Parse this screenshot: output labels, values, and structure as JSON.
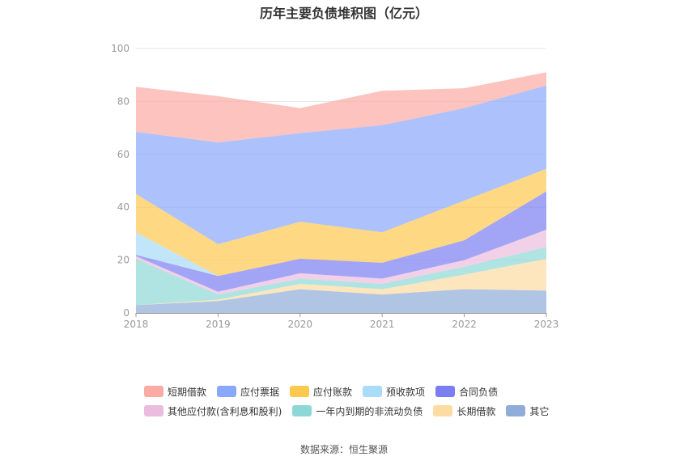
{
  "chart_data": {
    "type": "area",
    "stacked": true,
    "title": "历年主要负债堆积图（亿元）",
    "x": [
      "2018",
      "2019",
      "2020",
      "2021",
      "2022",
      "2023"
    ],
    "ylim": [
      0,
      100
    ],
    "yticks": [
      0,
      20,
      40,
      60,
      80,
      100
    ],
    "grid": true,
    "legend_position": "bottom",
    "series": [
      {
        "name": "其它",
        "color": "#8fadd8",
        "values": [
          3.0,
          4.5,
          9.0,
          7.0,
          9.0,
          8.5
        ]
      },
      {
        "name": "长期借款",
        "color": "#fcdca2",
        "values": [
          0.0,
          0.5,
          2.0,
          2.0,
          5.5,
          12.0
        ]
      },
      {
        "name": "一年内到期的非流动负债",
        "color": "#8dd8d6",
        "values": [
          17.5,
          2.0,
          2.0,
          2.0,
          3.0,
          4.5
        ]
      },
      {
        "name": "其他应付款(含利息和股利)",
        "color": "#ecbcde",
        "values": [
          1.0,
          1.0,
          2.0,
          2.0,
          2.5,
          6.5
        ]
      },
      {
        "name": "合同负债",
        "color": "#7b7ef2",
        "values": [
          0.5,
          6.0,
          5.5,
          6.0,
          7.5,
          14.5
        ]
      },
      {
        "name": "预收款项",
        "color": "#a8dcf7",
        "values": [
          8.5,
          0.0,
          0.0,
          0.0,
          0.0,
          0.0
        ]
      },
      {
        "name": "应付账款",
        "color": "#fdc84e",
        "values": [
          14.5,
          12.0,
          14.0,
          11.5,
          15.0,
          8.5
        ]
      },
      {
        "name": "应付票据",
        "color": "#8aa8fb",
        "values": [
          23.5,
          38.5,
          33.5,
          40.5,
          35.0,
          31.5
        ]
      },
      {
        "name": "短期借款",
        "color": "#fbaaa4",
        "values": [
          17.0,
          17.5,
          9.5,
          13.0,
          7.5,
          5.0
        ]
      }
    ]
  },
  "legend_rows": [
    [
      "短期借款",
      "应付票据",
      "应付账款",
      "预收款项",
      "合同负债"
    ],
    [
      "其他应付款(含利息和股利)",
      "一年内到期的非流动负债",
      "长期借款",
      "其它"
    ]
  ],
  "source": "数据来源：恒生聚源"
}
